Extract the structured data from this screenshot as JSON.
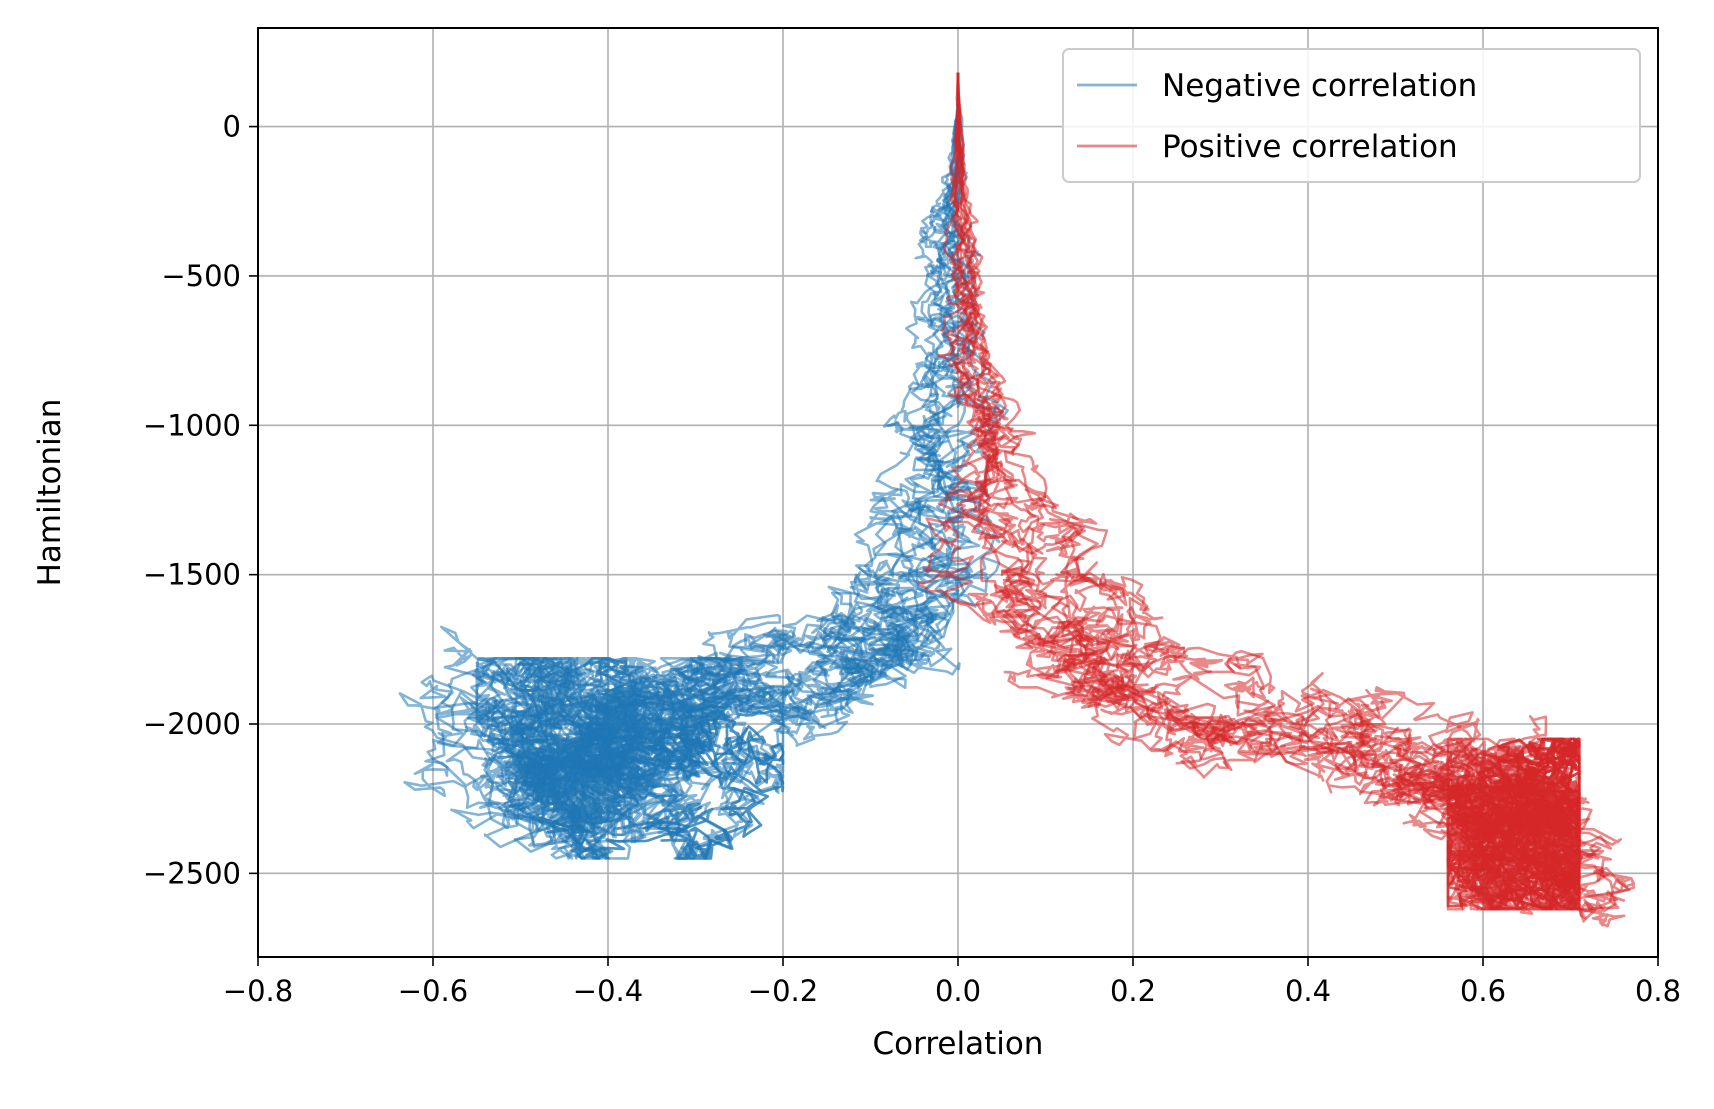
{
  "chart_data": {
    "type": "line",
    "title": "",
    "xlabel": "Correlation",
    "ylabel": "Hamiltonian",
    "xlim": [
      -0.8,
      0.8
    ],
    "ylim": [
      -2780,
      330
    ],
    "x_ticks": [
      -0.8,
      -0.6,
      -0.4,
      -0.2,
      0.0,
      0.2,
      0.4,
      0.6,
      0.8
    ],
    "x_tick_labels": [
      "−0.8",
      "−0.6",
      "−0.4",
      "−0.2",
      "0.0",
      "0.2",
      "0.4",
      "0.6",
      "0.8"
    ],
    "y_ticks": [
      0,
      -500,
      -1000,
      -1500,
      -2000,
      -2500
    ],
    "y_tick_labels": [
      "0",
      "−500",
      "−1000",
      "−1500",
      "−2000",
      "−2500"
    ],
    "grid": true,
    "legend_position": "upper right",
    "series": [
      {
        "name": "Negative correlation",
        "color": "#1f77b4",
        "alpha": 0.55,
        "num_trajectories": 12,
        "start": [
          0.0,
          100
        ],
        "x": [
          0.0,
          0.0,
          -0.01,
          -0.01,
          -0.01,
          -0.02,
          -0.03,
          -0.05,
          -0.08,
          -0.12,
          -0.18,
          -0.25,
          -0.32,
          -0.4,
          -0.45,
          -0.5,
          -0.55
        ],
        "y": [
          100,
          -100,
          -300,
          -500,
          -800,
          -1100,
          -1400,
          -1650,
          -1750,
          -1800,
          -1850,
          -1900,
          -1950,
          -2050,
          -2150,
          -2200,
          -1920
        ],
        "cloud_center": [
          -0.38,
          -2100
        ],
        "cloud_x_range": [
          -0.55,
          -0.2
        ],
        "cloud_y_range": [
          -2450,
          -1780
        ]
      },
      {
        "name": "Positive correlation",
        "color": "#d62728",
        "alpha": 0.55,
        "num_trajectories": 12,
        "start": [
          0.0,
          180
        ],
        "x": [
          0.0,
          0.0,
          0.01,
          0.02,
          0.04,
          0.07,
          0.1,
          0.15,
          0.2,
          0.3,
          0.4,
          0.5,
          0.55,
          0.6,
          0.65,
          0.7
        ],
        "y": [
          180,
          -200,
          -500,
          -800,
          -1100,
          -1400,
          -1600,
          -1750,
          -1850,
          -1950,
          -2000,
          -2100,
          -2150,
          -2200,
          -2350,
          -2550
        ],
        "cloud_center": [
          0.63,
          -2300
        ],
        "cloud_x_range": [
          0.56,
          0.71
        ],
        "cloud_y_range": [
          -2620,
          -2050
        ]
      }
    ]
  }
}
